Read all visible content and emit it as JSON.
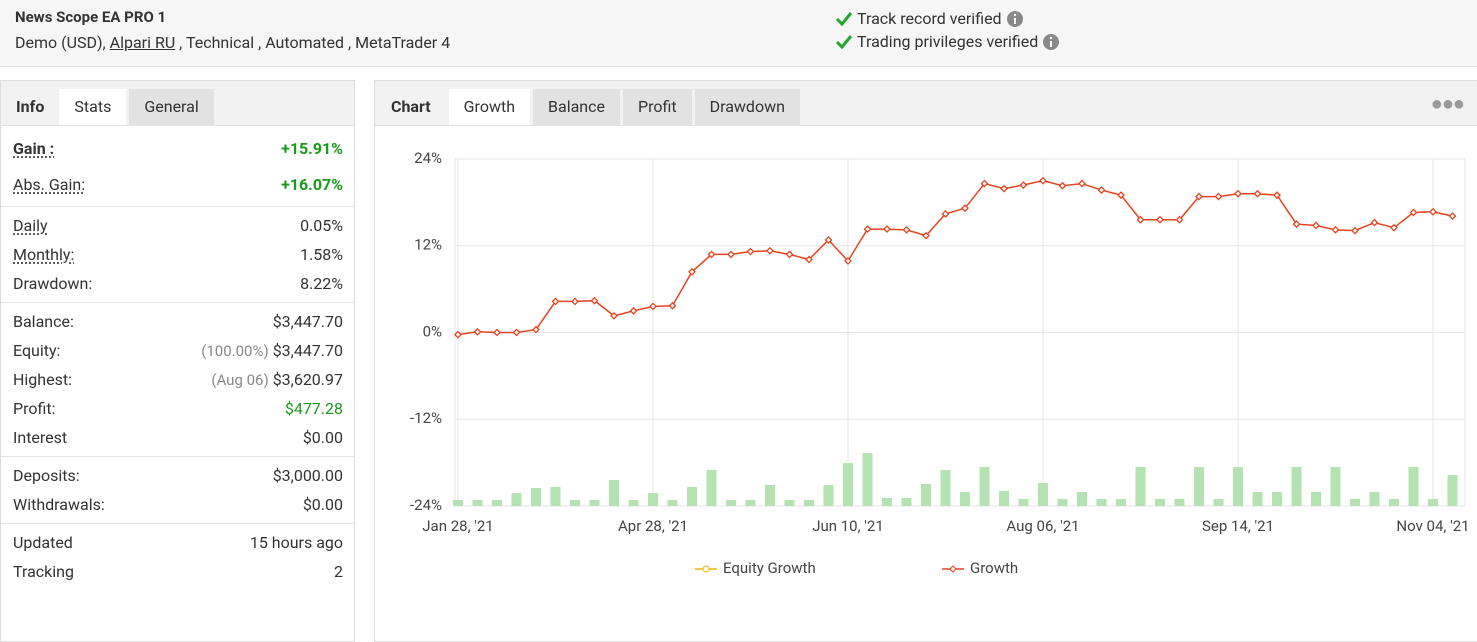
{
  "header": {
    "title": "News Scope EA PRO 1",
    "subtitle_start": "Demo (USD),",
    "broker": "Alpari RU",
    "subtitle_end": ", Technical , Automated , MetaTrader 4",
    "verified": [
      "Track record verified",
      "Trading privileges verified"
    ]
  },
  "left_tabs": {
    "items": [
      "Info",
      "Stats",
      "General"
    ],
    "active": 1
  },
  "stats": [
    [
      {
        "label": "Gain :",
        "value": "+15.91%",
        "underline": true,
        "bold": true,
        "positive": true
      },
      {
        "label": "Abs. Gain:",
        "value": "+16.07%",
        "underline": true,
        "positive": true
      }
    ],
    [
      {
        "label": "Daily",
        "value": "0.05%",
        "underline": true
      },
      {
        "label": "Monthly:",
        "value": "1.58%",
        "underline": true
      },
      {
        "label": "Drawdown:",
        "value": "8.22%"
      }
    ],
    [
      {
        "label": "Balance:",
        "value": "$3,447.70"
      },
      {
        "label": "Equity:",
        "note": "(100.00%)",
        "value": "$3,447.70"
      },
      {
        "label": "Highest:",
        "note": "(Aug 06)",
        "value": "$3,620.97"
      },
      {
        "label": "Profit:",
        "value": "$477.28",
        "positive": true
      },
      {
        "label": "Interest",
        "value": "$0.00"
      }
    ],
    [
      {
        "label": "Deposits:",
        "value": "$3,000.00"
      },
      {
        "label": "Withdrawals:",
        "value": "$0.00"
      }
    ],
    [
      {
        "label": "Updated",
        "value": "15 hours ago"
      },
      {
        "label": "Tracking",
        "value": "2"
      }
    ]
  ],
  "right_tabs": {
    "items": [
      "Chart",
      "Growth",
      "Balance",
      "Profit",
      "Drawdown"
    ],
    "active": 1
  },
  "chart_data": {
    "type": "line",
    "categories": [
      "Jan 28, '21",
      null,
      null,
      null,
      null,
      null,
      null,
      null,
      null,
      null,
      "Apr 28, '21",
      null,
      null,
      null,
      null,
      null,
      null,
      null,
      null,
      null,
      "Jun 10, '21",
      null,
      null,
      null,
      null,
      null,
      null,
      null,
      null,
      null,
      "Aug 06, '21",
      null,
      null,
      null,
      null,
      null,
      null,
      null,
      null,
      null,
      "Sep 14, '21",
      null,
      null,
      null,
      null,
      null,
      null,
      null,
      null,
      null,
      "Nov 04, '21",
      null
    ],
    "series": [
      {
        "name": "Growth",
        "color": "#e8431f",
        "values": [
          -0.3,
          0.1,
          0,
          0,
          0.4,
          4.3,
          4.3,
          4.4,
          2.3,
          3.0,
          3.6,
          3.7,
          8.4,
          10.8,
          10.8,
          11.2,
          11.3,
          10.8,
          10.1,
          12.8,
          9.9,
          14.3,
          14.3,
          14.2,
          13.4,
          16.4,
          17.2,
          20.6,
          19.9,
          20.4,
          21.0,
          20.3,
          20.6,
          19.7,
          19.0,
          15.6,
          15.6,
          15.6,
          18.8,
          18.8,
          19.2,
          19.2,
          19.0,
          15.0,
          14.8,
          14.2,
          14.1,
          15.2,
          14.5,
          16.6,
          16.7,
          16.1
        ]
      },
      {
        "type": "bar",
        "axis": "y2",
        "color": "#b4e2b0",
        "values": [
          6,
          6,
          6,
          13,
          18,
          19,
          6,
          6,
          26,
          6,
          13,
          6,
          19,
          36,
          6,
          6,
          21,
          6,
          6,
          21,
          43,
          53,
          8,
          8,
          22,
          36,
          14,
          39,
          15,
          7,
          23,
          7,
          14,
          7,
          7,
          39,
          7,
          7,
          39,
          7,
          39,
          14,
          14,
          39,
          14,
          39,
          7,
          14,
          7,
          39,
          7,
          31
        ]
      }
    ],
    "legend": [
      {
        "name": "Equity Growth",
        "color": "#f0b400"
      },
      {
        "name": "Growth",
        "color": "#e8431f"
      }
    ],
    "ylim": [
      -24,
      24
    ],
    "yticks": [
      {
        "value": -24,
        "label": "-24%"
      },
      {
        "value": -12,
        "label": "-12%"
      },
      {
        "value": 0,
        "label": "0%"
      },
      {
        "value": 12,
        "label": "12%"
      },
      {
        "value": 24,
        "label": "24%"
      }
    ],
    "y2lim": [
      0,
      347
    ],
    "grid": true
  }
}
